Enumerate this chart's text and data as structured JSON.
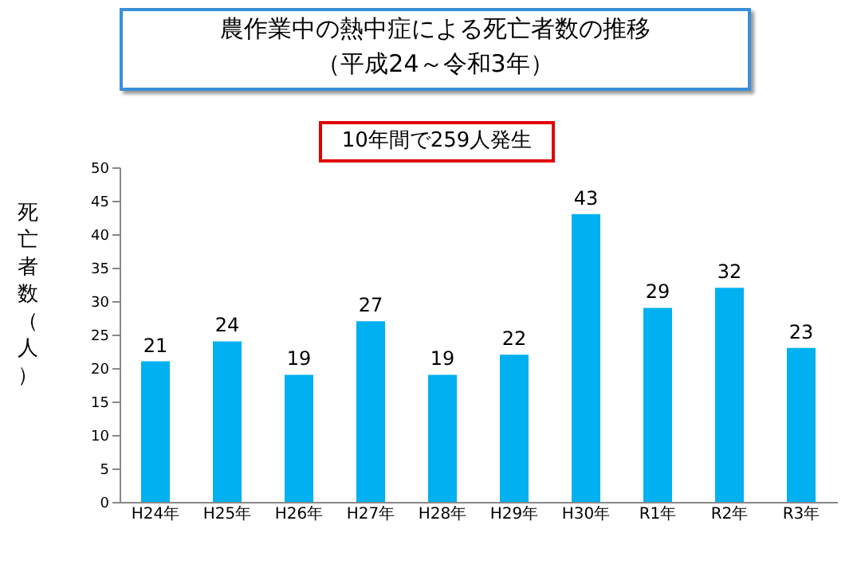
{
  "chart_data": {
    "type": "bar",
    "title": "農作業中の熱中症による死亡者数の推移",
    "subtitle": "（平成24～令和3年）",
    "ylabel": "死亡者数（人）",
    "annotations": [
      "10年間で259人発生"
    ],
    "categories": [
      "H24年",
      "H25年",
      "H26年",
      "H27年",
      "H28年",
      "H29年",
      "H30年",
      "R1年",
      "R2年",
      "R3年"
    ],
    "values": [
      21,
      24,
      19,
      27,
      19,
      22,
      43,
      29,
      32,
      23
    ],
    "color": "#00b0f0",
    "ylim": [
      0,
      50
    ],
    "yticks": [
      0,
      5,
      10,
      15,
      20,
      25,
      30,
      35,
      40,
      45,
      50
    ],
    "grid": false,
    "data_labels": true
  }
}
